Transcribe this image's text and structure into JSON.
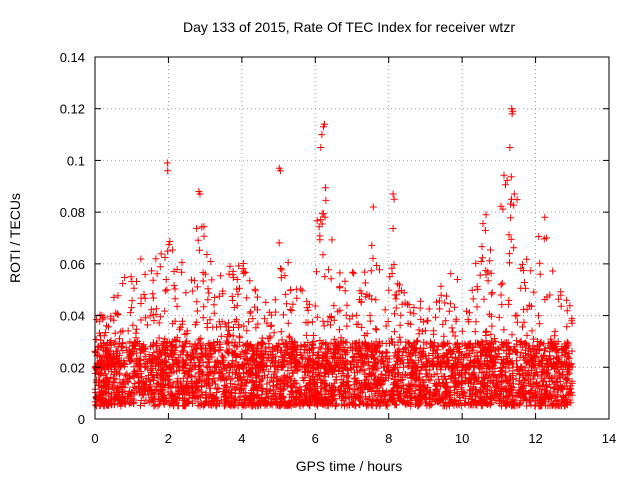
{
  "chart_data": {
    "type": "scatter",
    "title": "Day 133 of 2015, Rate Of TEC Index for receiver wtzr",
    "xlabel": "GPS time / hours",
    "ylabel": "ROTI / TECUs",
    "xlim": [
      0,
      14
    ],
    "ylim": [
      0,
      0.14
    ],
    "x_ticks": [
      "0",
      "2",
      "4",
      "6",
      "8",
      "10",
      "12",
      "14"
    ],
    "y_ticks": [
      "0",
      "0.02",
      "0.04",
      "0.06",
      "0.08",
      "0.1",
      "0.12",
      "0.14"
    ],
    "grid": true,
    "marker": "+",
    "color": "#ff0000",
    "x_data_range": [
      0,
      13.0
    ],
    "baseline_range": [
      0.005,
      0.03
    ],
    "envelope": [
      [
        0.0,
        0.047
      ],
      [
        0.3,
        0.038
      ],
      [
        0.6,
        0.052
      ],
      [
        0.9,
        0.058
      ],
      [
        1.2,
        0.06
      ],
      [
        1.3,
        0.065
      ],
      [
        1.5,
        0.063
      ],
      [
        1.8,
        0.065
      ],
      [
        1.95,
        0.099
      ],
      [
        2.1,
        0.082
      ],
      [
        2.4,
        0.06
      ],
      [
        2.6,
        0.058
      ],
      [
        2.85,
        0.088
      ],
      [
        3.1,
        0.064
      ],
      [
        3.4,
        0.06
      ],
      [
        3.6,
        0.062
      ],
      [
        4.0,
        0.062
      ],
      [
        4.3,
        0.052
      ],
      [
        4.6,
        0.045
      ],
      [
        4.9,
        0.05
      ],
      [
        5.05,
        0.097
      ],
      [
        5.3,
        0.054
      ],
      [
        5.6,
        0.054
      ],
      [
        5.85,
        0.052
      ],
      [
        6.05,
        0.091
      ],
      [
        6.2,
        0.114
      ],
      [
        6.5,
        0.062
      ],
      [
        6.9,
        0.063
      ],
      [
        7.2,
        0.06
      ],
      [
        7.45,
        0.06
      ],
      [
        7.6,
        0.082
      ],
      [
        7.85,
        0.055
      ],
      [
        8.1,
        0.087
      ],
      [
        8.3,
        0.052
      ],
      [
        8.7,
        0.05
      ],
      [
        9.2,
        0.045
      ],
      [
        9.5,
        0.055
      ],
      [
        9.9,
        0.06
      ],
      [
        10.2,
        0.05
      ],
      [
        10.6,
        0.079
      ],
      [
        10.9,
        0.06
      ],
      [
        11.3,
        0.12
      ],
      [
        11.5,
        0.087
      ],
      [
        11.8,
        0.06
      ],
      [
        12.2,
        0.078
      ],
      [
        12.5,
        0.055
      ],
      [
        12.8,
        0.048
      ],
      [
        13.0,
        0.045
      ]
    ],
    "highlighted_points": [
      [
        11.35,
        0.12
      ],
      [
        11.38,
        0.119
      ],
      [
        11.36,
        0.118
      ],
      [
        11.3,
        0.105
      ],
      [
        6.25,
        0.114
      ],
      [
        6.22,
        0.113
      ],
      [
        6.18,
        0.11
      ],
      [
        6.15,
        0.105
      ],
      [
        1.97,
        0.099
      ],
      [
        1.98,
        0.096
      ],
      [
        5.02,
        0.097
      ],
      [
        5.05,
        0.096
      ],
      [
        2.83,
        0.088
      ],
      [
        2.86,
        0.087
      ],
      [
        8.12,
        0.087
      ],
      [
        8.15,
        0.085
      ],
      [
        7.58,
        0.082
      ],
      [
        11.42,
        0.087
      ],
      [
        10.65,
        0.079
      ],
      [
        12.25,
        0.078
      ]
    ]
  }
}
